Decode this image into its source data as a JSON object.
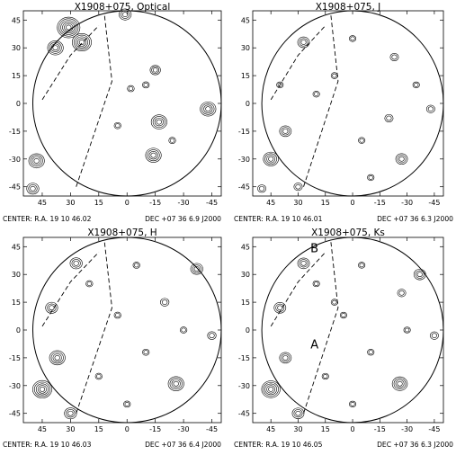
{
  "chart_data": [
    {
      "type": "contour",
      "title": "X1908+075, Optical",
      "footer": {
        "left": "CENTER:  R.A.  19  10  46.02",
        "right": "DEC   +07  36  6.9   J2000"
      },
      "xlim": [
        55,
        -50
      ],
      "ylim": [
        -50,
        50
      ],
      "xticks": [
        "45",
        "30",
        "15",
        "0",
        "-15",
        "-30",
        "-45"
      ],
      "yticks": [
        "45",
        "30",
        "15",
        "0",
        "-15",
        "-30",
        "-45"
      ],
      "labels": [],
      "boundary_lines": [
        {
          "style": "dashed",
          "points": [
            [
              45,
              2
            ],
            [
              30,
              26
            ],
            [
              15,
              42
            ]
          ]
        },
        {
          "style": "dashed",
          "points": [
            [
              27,
              -45
            ],
            [
              8,
              12
            ],
            [
              12,
              48
            ]
          ]
        }
      ],
      "sources": [
        {
          "x": 31,
          "y": 41,
          "r": 6
        },
        {
          "x": 38,
          "y": 30,
          "r": 4
        },
        {
          "x": 24,
          "y": 33,
          "r": 5
        },
        {
          "x": -15,
          "y": 18,
          "r": 2.5
        },
        {
          "x": -17,
          "y": -10,
          "r": 4
        },
        {
          "x": -14,
          "y": -28,
          "r": 4
        },
        {
          "x": -43,
          "y": -3,
          "r": 4
        },
        {
          "x": 48,
          "y": -31,
          "r": 4
        },
        {
          "x": 50,
          "y": -46,
          "r": 3
        },
        {
          "x": 1,
          "y": 48,
          "r": 3
        },
        {
          "x": -10,
          "y": 10,
          "r": 1.5
        },
        {
          "x": 5,
          "y": -12,
          "r": 1.5
        },
        {
          "x": -2,
          "y": 8,
          "r": 1.5
        },
        {
          "x": -24,
          "y": -20,
          "r": 1.5
        }
      ]
    },
    {
      "type": "contour",
      "title": "X1908+075, J",
      "footer": {
        "left": "CENTER:  R.A.  19  10  46.01",
        "right": "DEC   +07  36  6.3   J2000"
      },
      "xlim": [
        55,
        -50
      ],
      "ylim": [
        -50,
        50
      ],
      "xticks": [
        "45",
        "30",
        "15",
        "0",
        "-15",
        "-30",
        "-45"
      ],
      "yticks": [
        "45",
        "30",
        "15",
        "0",
        "-15",
        "-30",
        "-45"
      ],
      "labels": [],
      "boundary_lines": [
        {
          "style": "dashed",
          "points": [
            [
              45,
              2
            ],
            [
              30,
              26
            ],
            [
              15,
              42
            ]
          ]
        },
        {
          "style": "dashed",
          "points": [
            [
              27,
              -45
            ],
            [
              8,
              12
            ],
            [
              12,
              48
            ]
          ]
        }
      ],
      "sources": [
        {
          "x": 45,
          "y": -30,
          "r": 4
        },
        {
          "x": 27,
          "y": 33,
          "r": 3
        },
        {
          "x": 37,
          "y": -15,
          "r": 3
        },
        {
          "x": -20,
          "y": -8,
          "r": 2
        },
        {
          "x": -27,
          "y": -30,
          "r": 3
        },
        {
          "x": 30,
          "y": -45,
          "r": 2
        },
        {
          "x": -23,
          "y": 25,
          "r": 2
        },
        {
          "x": -43,
          "y": -3,
          "r": 2
        },
        {
          "x": 50,
          "y": -46,
          "r": 2
        },
        {
          "x": 10,
          "y": 15,
          "r": 1.5
        },
        {
          "x": -5,
          "y": -20,
          "r": 1.5
        },
        {
          "x": 20,
          "y": 5,
          "r": 1.5
        },
        {
          "x": -35,
          "y": 10,
          "r": 1.5
        },
        {
          "x": 0,
          "y": 35,
          "r": 1.5
        },
        {
          "x": -10,
          "y": -40,
          "r": 1.5
        },
        {
          "x": 40,
          "y": 10,
          "r": 1.5
        }
      ]
    },
    {
      "type": "contour",
      "title": "X1908+075, H",
      "footer": {
        "left": "CENTER:  R.A.  19  10  46.03",
        "right": "DEC   +07  36  6.4   J2000"
      },
      "xlim": [
        55,
        -50
      ],
      "ylim": [
        -50,
        50
      ],
      "xticks": [
        "45",
        "30",
        "15",
        "0",
        "-15",
        "-30",
        "-45"
      ],
      "yticks": [
        "45",
        "30",
        "15",
        "0",
        "-15",
        "-30",
        "-45"
      ],
      "labels": [],
      "boundary_lines": [
        {
          "style": "dashed",
          "points": [
            [
              45,
              2
            ],
            [
              30,
              26
            ],
            [
              15,
              42
            ]
          ]
        },
        {
          "style": "dashed",
          "points": [
            [
              27,
              -45
            ],
            [
              8,
              12
            ],
            [
              12,
              48
            ]
          ]
        }
      ],
      "sources": [
        {
          "x": 45,
          "y": -32,
          "r": 5
        },
        {
          "x": 37,
          "y": -15,
          "r": 4
        },
        {
          "x": 27,
          "y": 36,
          "r": 3
        },
        {
          "x": 40,
          "y": 12,
          "r": 3
        },
        {
          "x": -26,
          "y": -29,
          "r": 4
        },
        {
          "x": -37,
          "y": 33,
          "r": 3
        },
        {
          "x": -20,
          "y": 15,
          "r": 2
        },
        {
          "x": 30,
          "y": -45,
          "r": 3
        },
        {
          "x": -45,
          "y": -3,
          "r": 2
        },
        {
          "x": 5,
          "y": 8,
          "r": 1.5
        },
        {
          "x": -10,
          "y": -12,
          "r": 1.5
        },
        {
          "x": 15,
          "y": -25,
          "r": 1.5
        },
        {
          "x": 20,
          "y": 25,
          "r": 1.5
        },
        {
          "x": -5,
          "y": 35,
          "r": 1.5
        },
        {
          "x": -30,
          "y": 0,
          "r": 1.5
        },
        {
          "x": 0,
          "y": -40,
          "r": 1.5
        }
      ]
    },
    {
      "type": "contour",
      "title": "X1908+075, Ks",
      "footer": {
        "left": "CENTER:  R.A.  19  10  46.05",
        "right": "DEC   +07  36  6.3   J2000"
      },
      "xlim": [
        55,
        -50
      ],
      "ylim": [
        -50,
        50
      ],
      "xticks": [
        "45",
        "30",
        "15",
        "0",
        "-15",
        "-30",
        "-45"
      ],
      "yticks": [
        "45",
        "30",
        "15",
        "0",
        "-15",
        "-30",
        "-45"
      ],
      "labels": [
        {
          "text": "B",
          "x": 21,
          "y": 42
        },
        {
          "text": "A",
          "x": 21,
          "y": -10
        }
      ],
      "boundary_lines": [
        {
          "style": "dashed",
          "points": [
            [
              45,
              2
            ],
            [
              30,
              26
            ],
            [
              15,
              42
            ]
          ]
        },
        {
          "style": "dashed",
          "points": [
            [
              27,
              -45
            ],
            [
              8,
              12
            ],
            [
              12,
              48
            ]
          ]
        }
      ],
      "sources": [
        {
          "x": 45,
          "y": -32,
          "r": 5
        },
        {
          "x": 37,
          "y": -15,
          "r": 3
        },
        {
          "x": 27,
          "y": 36,
          "r": 3
        },
        {
          "x": 40,
          "y": 12,
          "r": 3
        },
        {
          "x": -26,
          "y": -29,
          "r": 4
        },
        {
          "x": -37,
          "y": 30,
          "r": 3
        },
        {
          "x": -27,
          "y": 20,
          "r": 2
        },
        {
          "x": 30,
          "y": -45,
          "r": 3
        },
        {
          "x": -45,
          "y": -3,
          "r": 2
        },
        {
          "x": 5,
          "y": 8,
          "r": 1.5
        },
        {
          "x": -10,
          "y": -12,
          "r": 1.5
        },
        {
          "x": 15,
          "y": -25,
          "r": 1.5
        },
        {
          "x": 20,
          "y": 25,
          "r": 1.5
        },
        {
          "x": -5,
          "y": 35,
          "r": 1.5
        },
        {
          "x": -30,
          "y": 0,
          "r": 1.5
        },
        {
          "x": 0,
          "y": -40,
          "r": 1.5
        },
        {
          "x": 10,
          "y": 15,
          "r": 1.5
        }
      ]
    }
  ]
}
